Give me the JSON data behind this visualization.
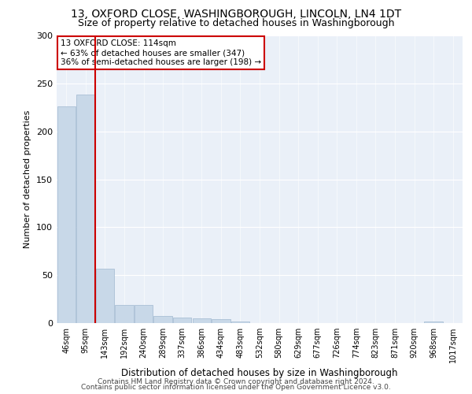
{
  "title": "13, OXFORD CLOSE, WASHINGBOROUGH, LINCOLN, LN4 1DT",
  "subtitle": "Size of property relative to detached houses in Washingborough",
  "xlabel": "Distribution of detached houses by size in Washingborough",
  "ylabel": "Number of detached properties",
  "bin_labels": [
    "46sqm",
    "95sqm",
    "143sqm",
    "192sqm",
    "240sqm",
    "289sqm",
    "337sqm",
    "386sqm",
    "434sqm",
    "483sqm",
    "532sqm",
    "580sqm",
    "629sqm",
    "677sqm",
    "726sqm",
    "774sqm",
    "823sqm",
    "871sqm",
    "920sqm",
    "968sqm",
    "1017sqm"
  ],
  "bar_heights": [
    226,
    238,
    57,
    19,
    19,
    7,
    6,
    5,
    4,
    2,
    0,
    0,
    0,
    0,
    0,
    0,
    0,
    0,
    0,
    2,
    0
  ],
  "bar_color": "#c8d8e8",
  "bar_edge_color": "#a0b8d0",
  "bar_edge_width": 0.5,
  "ylim": [
    0,
    300
  ],
  "yticks": [
    0,
    50,
    100,
    150,
    200,
    250,
    300
  ],
  "red_line_x": 1.475,
  "red_line_color": "#cc0000",
  "annotation_text": "13 OXFORD CLOSE: 114sqm\n← 63% of detached houses are smaller (347)\n36% of semi-detached houses are larger (198) →",
  "annotation_box_color": "#ffffff",
  "annotation_box_edge_color": "#cc0000",
  "footer_line1": "Contains HM Land Registry data © Crown copyright and database right 2024.",
  "footer_line2": "Contains public sector information licensed under the Open Government Licence v3.0.",
  "bg_color": "#eaf0f8",
  "title_fontsize": 10,
  "subtitle_fontsize": 9,
  "annotation_fontsize": 7.5,
  "footer_fontsize": 6.5,
  "ylabel_fontsize": 8,
  "xlabel_fontsize": 8.5,
  "tick_fontsize": 7
}
